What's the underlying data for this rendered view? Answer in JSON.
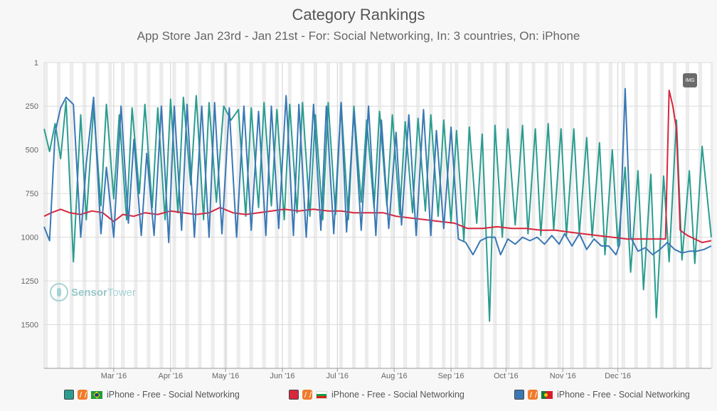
{
  "title": "Category Rankings",
  "subtitle": "App Store Jan 23rd - Jan 21st - For: Social Networking, In: 3 countries, On: iPhone",
  "watermark": {
    "brand_a": "Sensor",
    "brand_b": "Tower"
  },
  "export_button": "IMG",
  "legend": [
    {
      "label": "iPhone - Free - Social Networking",
      "color": "#2a9d8f",
      "flag": "flag-br-icon"
    },
    {
      "label": "iPhone - Free - Social Networking",
      "color": "#d7263d",
      "flag": "flag-bg-icon"
    },
    {
      "label": "iPhone - Free - Social Networking",
      "color": "#3a78b5",
      "flag": "flag-pt-icon"
    }
  ],
  "chart_data": {
    "type": "line",
    "y_reversed": true,
    "ylim": [
      1,
      1750
    ],
    "y_ticks": [
      1,
      250,
      500,
      750,
      1000,
      1250,
      1500
    ],
    "x_range": [
      "2016-01-23",
      "2017-01-21"
    ],
    "x_ticks": [
      {
        "label": "Mar '16",
        "date": "2016-03-01"
      },
      {
        "label": "Apr '16",
        "date": "2016-04-01"
      },
      {
        "label": "May '16",
        "date": "2016-05-01"
      },
      {
        "label": "Jun '16",
        "date": "2016-06-01"
      },
      {
        "label": "Jul '16",
        "date": "2016-07-01"
      },
      {
        "label": "Aug '16",
        "date": "2016-08-01"
      },
      {
        "label": "Sep '16",
        "date": "2016-09-01"
      },
      {
        "label": "Oct '16",
        "date": "2016-10-01"
      },
      {
        "label": "Nov '16",
        "date": "2016-11-01"
      },
      {
        "label": "Dec '16",
        "date": "2016-12-01"
      }
    ],
    "grid": true,
    "legend_position": "bottom",
    "series": [
      {
        "color": "#2a9d8f",
        "points": [
          [
            "2016-01-23",
            380
          ],
          [
            "2016-01-26",
            510
          ],
          [
            "2016-01-29",
            350
          ],
          [
            "2016-02-01",
            550
          ],
          [
            "2016-02-04",
            220
          ],
          [
            "2016-02-08",
            1140
          ],
          [
            "2016-02-12",
            300
          ],
          [
            "2016-02-15",
            900
          ],
          [
            "2016-02-19",
            260
          ],
          [
            "2016-02-23",
            820
          ],
          [
            "2016-02-26",
            240
          ],
          [
            "2016-03-01",
            780
          ],
          [
            "2016-03-04",
            300
          ],
          [
            "2016-03-08",
            900
          ],
          [
            "2016-03-11",
            260
          ],
          [
            "2016-03-15",
            750
          ],
          [
            "2016-03-18",
            240
          ],
          [
            "2016-03-22",
            830
          ],
          [
            "2016-03-25",
            260
          ],
          [
            "2016-03-29",
            900
          ],
          [
            "2016-04-01",
            210
          ],
          [
            "2016-04-05",
            860
          ],
          [
            "2016-04-08",
            200
          ],
          [
            "2016-04-12",
            700
          ],
          [
            "2016-04-15",
            190
          ],
          [
            "2016-04-19",
            900
          ],
          [
            "2016-04-22",
            230
          ],
          [
            "2016-04-26",
            800
          ],
          [
            "2016-04-30",
            250
          ],
          [
            "2016-05-04",
            330
          ],
          [
            "2016-05-08",
            270
          ],
          [
            "2016-05-12",
            880
          ],
          [
            "2016-05-15",
            260
          ],
          [
            "2016-05-19",
            830
          ],
          [
            "2016-05-22",
            230
          ],
          [
            "2016-05-26",
            820
          ],
          [
            "2016-05-29",
            270
          ],
          [
            "2016-06-02",
            900
          ],
          [
            "2016-06-05",
            240
          ],
          [
            "2016-06-09",
            860
          ],
          [
            "2016-06-12",
            230
          ],
          [
            "2016-06-16",
            880
          ],
          [
            "2016-06-19",
            300
          ],
          [
            "2016-06-23",
            900
          ],
          [
            "2016-06-26",
            230
          ],
          [
            "2016-06-30",
            870
          ],
          [
            "2016-07-03",
            230
          ],
          [
            "2016-07-07",
            900
          ],
          [
            "2016-07-10",
            250
          ],
          [
            "2016-07-14",
            800
          ],
          [
            "2016-07-17",
            330
          ],
          [
            "2016-07-21",
            830
          ],
          [
            "2016-07-24",
            280
          ],
          [
            "2016-07-28",
            820
          ],
          [
            "2016-07-31",
            300
          ],
          [
            "2016-08-04",
            870
          ],
          [
            "2016-08-07",
            340
          ],
          [
            "2016-08-11",
            860
          ],
          [
            "2016-08-14",
            320
          ],
          [
            "2016-08-18",
            850
          ],
          [
            "2016-08-21",
            300
          ],
          [
            "2016-08-25",
            880
          ],
          [
            "2016-08-28",
            330
          ],
          [
            "2016-09-01",
            920
          ],
          [
            "2016-09-04",
            390
          ],
          [
            "2016-09-08",
            1020
          ],
          [
            "2016-09-11",
            370
          ],
          [
            "2016-09-15",
            920
          ],
          [
            "2016-09-18",
            410
          ],
          [
            "2016-09-22",
            1480
          ],
          [
            "2016-09-25",
            360
          ],
          [
            "2016-09-29",
            1000
          ],
          [
            "2016-10-02",
            380
          ],
          [
            "2016-10-06",
            930
          ],
          [
            "2016-10-10",
            360
          ],
          [
            "2016-10-13",
            980
          ],
          [
            "2016-10-17",
            380
          ],
          [
            "2016-10-20",
            990
          ],
          [
            "2016-10-24",
            350
          ],
          [
            "2016-10-27",
            960
          ],
          [
            "2016-10-31",
            380
          ],
          [
            "2016-11-03",
            990
          ],
          [
            "2016-11-07",
            380
          ],
          [
            "2016-11-10",
            980
          ],
          [
            "2016-11-14",
            430
          ],
          [
            "2016-11-17",
            1000
          ],
          [
            "2016-11-21",
            460
          ],
          [
            "2016-11-24",
            1100
          ],
          [
            "2016-11-28",
            500
          ],
          [
            "2016-12-01",
            1050
          ],
          [
            "2016-12-05",
            600
          ],
          [
            "2016-12-08",
            1200
          ],
          [
            "2016-12-12",
            620
          ],
          [
            "2016-12-15",
            1300
          ],
          [
            "2016-12-19",
            640
          ],
          [
            "2016-12-22",
            1460
          ],
          [
            "2016-12-26",
            650
          ],
          [
            "2016-12-29",
            1140
          ],
          [
            "2017-01-02",
            330
          ],
          [
            "2017-01-05",
            1130
          ],
          [
            "2017-01-09",
            620
          ],
          [
            "2017-01-12",
            1150
          ],
          [
            "2017-01-16",
            480
          ],
          [
            "2017-01-21",
            1000
          ]
        ]
      },
      {
        "color": "#d7263d",
        "points": [
          [
            "2016-01-23",
            880
          ],
          [
            "2016-01-27",
            860
          ],
          [
            "2016-02-01",
            840
          ],
          [
            "2016-02-06",
            860
          ],
          [
            "2016-02-12",
            870
          ],
          [
            "2016-02-18",
            850
          ],
          [
            "2016-02-24",
            860
          ],
          [
            "2016-03-01",
            910
          ],
          [
            "2016-03-06",
            870
          ],
          [
            "2016-03-12",
            880
          ],
          [
            "2016-03-18",
            860
          ],
          [
            "2016-03-25",
            870
          ],
          [
            "2016-04-01",
            850
          ],
          [
            "2016-04-08",
            860
          ],
          [
            "2016-04-15",
            870
          ],
          [
            "2016-04-22",
            860
          ],
          [
            "2016-04-28",
            830
          ],
          [
            "2016-05-05",
            860
          ],
          [
            "2016-05-12",
            870
          ],
          [
            "2016-05-19",
            860
          ],
          [
            "2016-05-26",
            850
          ],
          [
            "2016-06-02",
            840
          ],
          [
            "2016-06-10",
            850
          ],
          [
            "2016-06-18",
            840
          ],
          [
            "2016-06-26",
            850
          ],
          [
            "2016-07-03",
            850
          ],
          [
            "2016-07-10",
            860
          ],
          [
            "2016-07-18",
            860
          ],
          [
            "2016-07-26",
            860
          ],
          [
            "2016-08-02",
            880
          ],
          [
            "2016-08-10",
            890
          ],
          [
            "2016-08-18",
            900
          ],
          [
            "2016-08-26",
            910
          ],
          [
            "2016-09-03",
            920
          ],
          [
            "2016-09-10",
            950
          ],
          [
            "2016-09-18",
            950
          ],
          [
            "2016-09-26",
            940
          ],
          [
            "2016-10-04",
            950
          ],
          [
            "2016-10-12",
            950
          ],
          [
            "2016-10-20",
            960
          ],
          [
            "2016-10-28",
            960
          ],
          [
            "2016-11-04",
            970
          ],
          [
            "2016-11-12",
            980
          ],
          [
            "2016-11-20",
            990
          ],
          [
            "2016-11-28",
            1000
          ],
          [
            "2016-12-06",
            1010
          ],
          [
            "2016-12-14",
            1010
          ],
          [
            "2016-12-22",
            1010
          ],
          [
            "2016-12-27",
            1010
          ],
          [
            "2016-12-29",
            160
          ],
          [
            "2016-12-31",
            250
          ],
          [
            "2017-01-02",
            380
          ],
          [
            "2017-01-04",
            960
          ],
          [
            "2017-01-08",
            990
          ],
          [
            "2017-01-12",
            1010
          ],
          [
            "2017-01-16",
            1030
          ],
          [
            "2017-01-21",
            1020
          ]
        ]
      },
      {
        "color": "#3a78b5",
        "points": [
          [
            "2016-01-23",
            940
          ],
          [
            "2016-01-26",
            1020
          ],
          [
            "2016-01-29",
            400
          ],
          [
            "2016-02-01",
            260
          ],
          [
            "2016-02-04",
            200
          ],
          [
            "2016-02-08",
            240
          ],
          [
            "2016-02-12",
            1000
          ],
          [
            "2016-02-15",
            580
          ],
          [
            "2016-02-19",
            200
          ],
          [
            "2016-02-23",
            980
          ],
          [
            "2016-02-26",
            600
          ],
          [
            "2016-03-01",
            1000
          ],
          [
            "2016-03-05",
            250
          ],
          [
            "2016-03-09",
            920
          ],
          [
            "2016-03-12",
            440
          ],
          [
            "2016-03-16",
            990
          ],
          [
            "2016-03-19",
            520
          ],
          [
            "2016-03-23",
            990
          ],
          [
            "2016-03-27",
            250
          ],
          [
            "2016-03-31",
            1030
          ],
          [
            "2016-04-03",
            250
          ],
          [
            "2016-04-07",
            960
          ],
          [
            "2016-04-10",
            240
          ],
          [
            "2016-04-14",
            1000
          ],
          [
            "2016-04-18",
            250
          ],
          [
            "2016-04-22",
            1000
          ],
          [
            "2016-04-25",
            230
          ],
          [
            "2016-04-29",
            980
          ],
          [
            "2016-05-03",
            260
          ],
          [
            "2016-05-07",
            1000
          ],
          [
            "2016-05-11",
            250
          ],
          [
            "2016-05-15",
            960
          ],
          [
            "2016-05-19",
            280
          ],
          [
            "2016-05-23",
            990
          ],
          [
            "2016-05-26",
            250
          ],
          [
            "2016-05-30",
            950
          ],
          [
            "2016-06-03",
            190
          ],
          [
            "2016-06-07",
            990
          ],
          [
            "2016-06-10",
            240
          ],
          [
            "2016-06-14",
            1000
          ],
          [
            "2016-06-18",
            240
          ],
          [
            "2016-06-22",
            960
          ],
          [
            "2016-06-25",
            250
          ],
          [
            "2016-06-29",
            980
          ],
          [
            "2016-07-03",
            230
          ],
          [
            "2016-07-06",
            970
          ],
          [
            "2016-07-10",
            280
          ],
          [
            "2016-07-14",
            960
          ],
          [
            "2016-07-18",
            250
          ],
          [
            "2016-07-22",
            990
          ],
          [
            "2016-07-25",
            330
          ],
          [
            "2016-07-29",
            950
          ],
          [
            "2016-08-02",
            400
          ],
          [
            "2016-08-05",
            930
          ],
          [
            "2016-08-09",
            300
          ],
          [
            "2016-08-13",
            990
          ],
          [
            "2016-08-17",
            270
          ],
          [
            "2016-08-21",
            990
          ],
          [
            "2016-08-24",
            390
          ],
          [
            "2016-08-28",
            950
          ],
          [
            "2016-09-01",
            370
          ],
          [
            "2016-09-05",
            1010
          ],
          [
            "2016-09-09",
            1030
          ],
          [
            "2016-09-13",
            1100
          ],
          [
            "2016-09-17",
            1020
          ],
          [
            "2016-09-21",
            1000
          ],
          [
            "2016-09-25",
            1000
          ],
          [
            "2016-09-28",
            1100
          ],
          [
            "2016-10-02",
            1010
          ],
          [
            "2016-10-06",
            1040
          ],
          [
            "2016-10-10",
            1000
          ],
          [
            "2016-10-14",
            1020
          ],
          [
            "2016-10-18",
            1000
          ],
          [
            "2016-10-22",
            1040
          ],
          [
            "2016-10-26",
            990
          ],
          [
            "2016-10-30",
            1040
          ],
          [
            "2016-11-02",
            980
          ],
          [
            "2016-11-06",
            1050
          ],
          [
            "2016-11-10",
            980
          ],
          [
            "2016-11-14",
            1070
          ],
          [
            "2016-11-18",
            1010
          ],
          [
            "2016-11-22",
            1050
          ],
          [
            "2016-11-26",
            1050
          ],
          [
            "2016-11-30",
            1100
          ],
          [
            "2016-12-02",
            1040
          ],
          [
            "2016-12-05",
            150
          ],
          [
            "2016-12-08",
            1000
          ],
          [
            "2016-12-12",
            1080
          ],
          [
            "2016-12-16",
            1060
          ],
          [
            "2016-12-20",
            1100
          ],
          [
            "2016-12-24",
            1070
          ],
          [
            "2016-12-28",
            1030
          ],
          [
            "2017-01-01",
            1070
          ],
          [
            "2017-01-05",
            1090
          ],
          [
            "2017-01-09",
            1080
          ],
          [
            "2017-01-13",
            1080
          ],
          [
            "2017-01-17",
            1070
          ],
          [
            "2017-01-21",
            1050
          ]
        ]
      }
    ]
  }
}
